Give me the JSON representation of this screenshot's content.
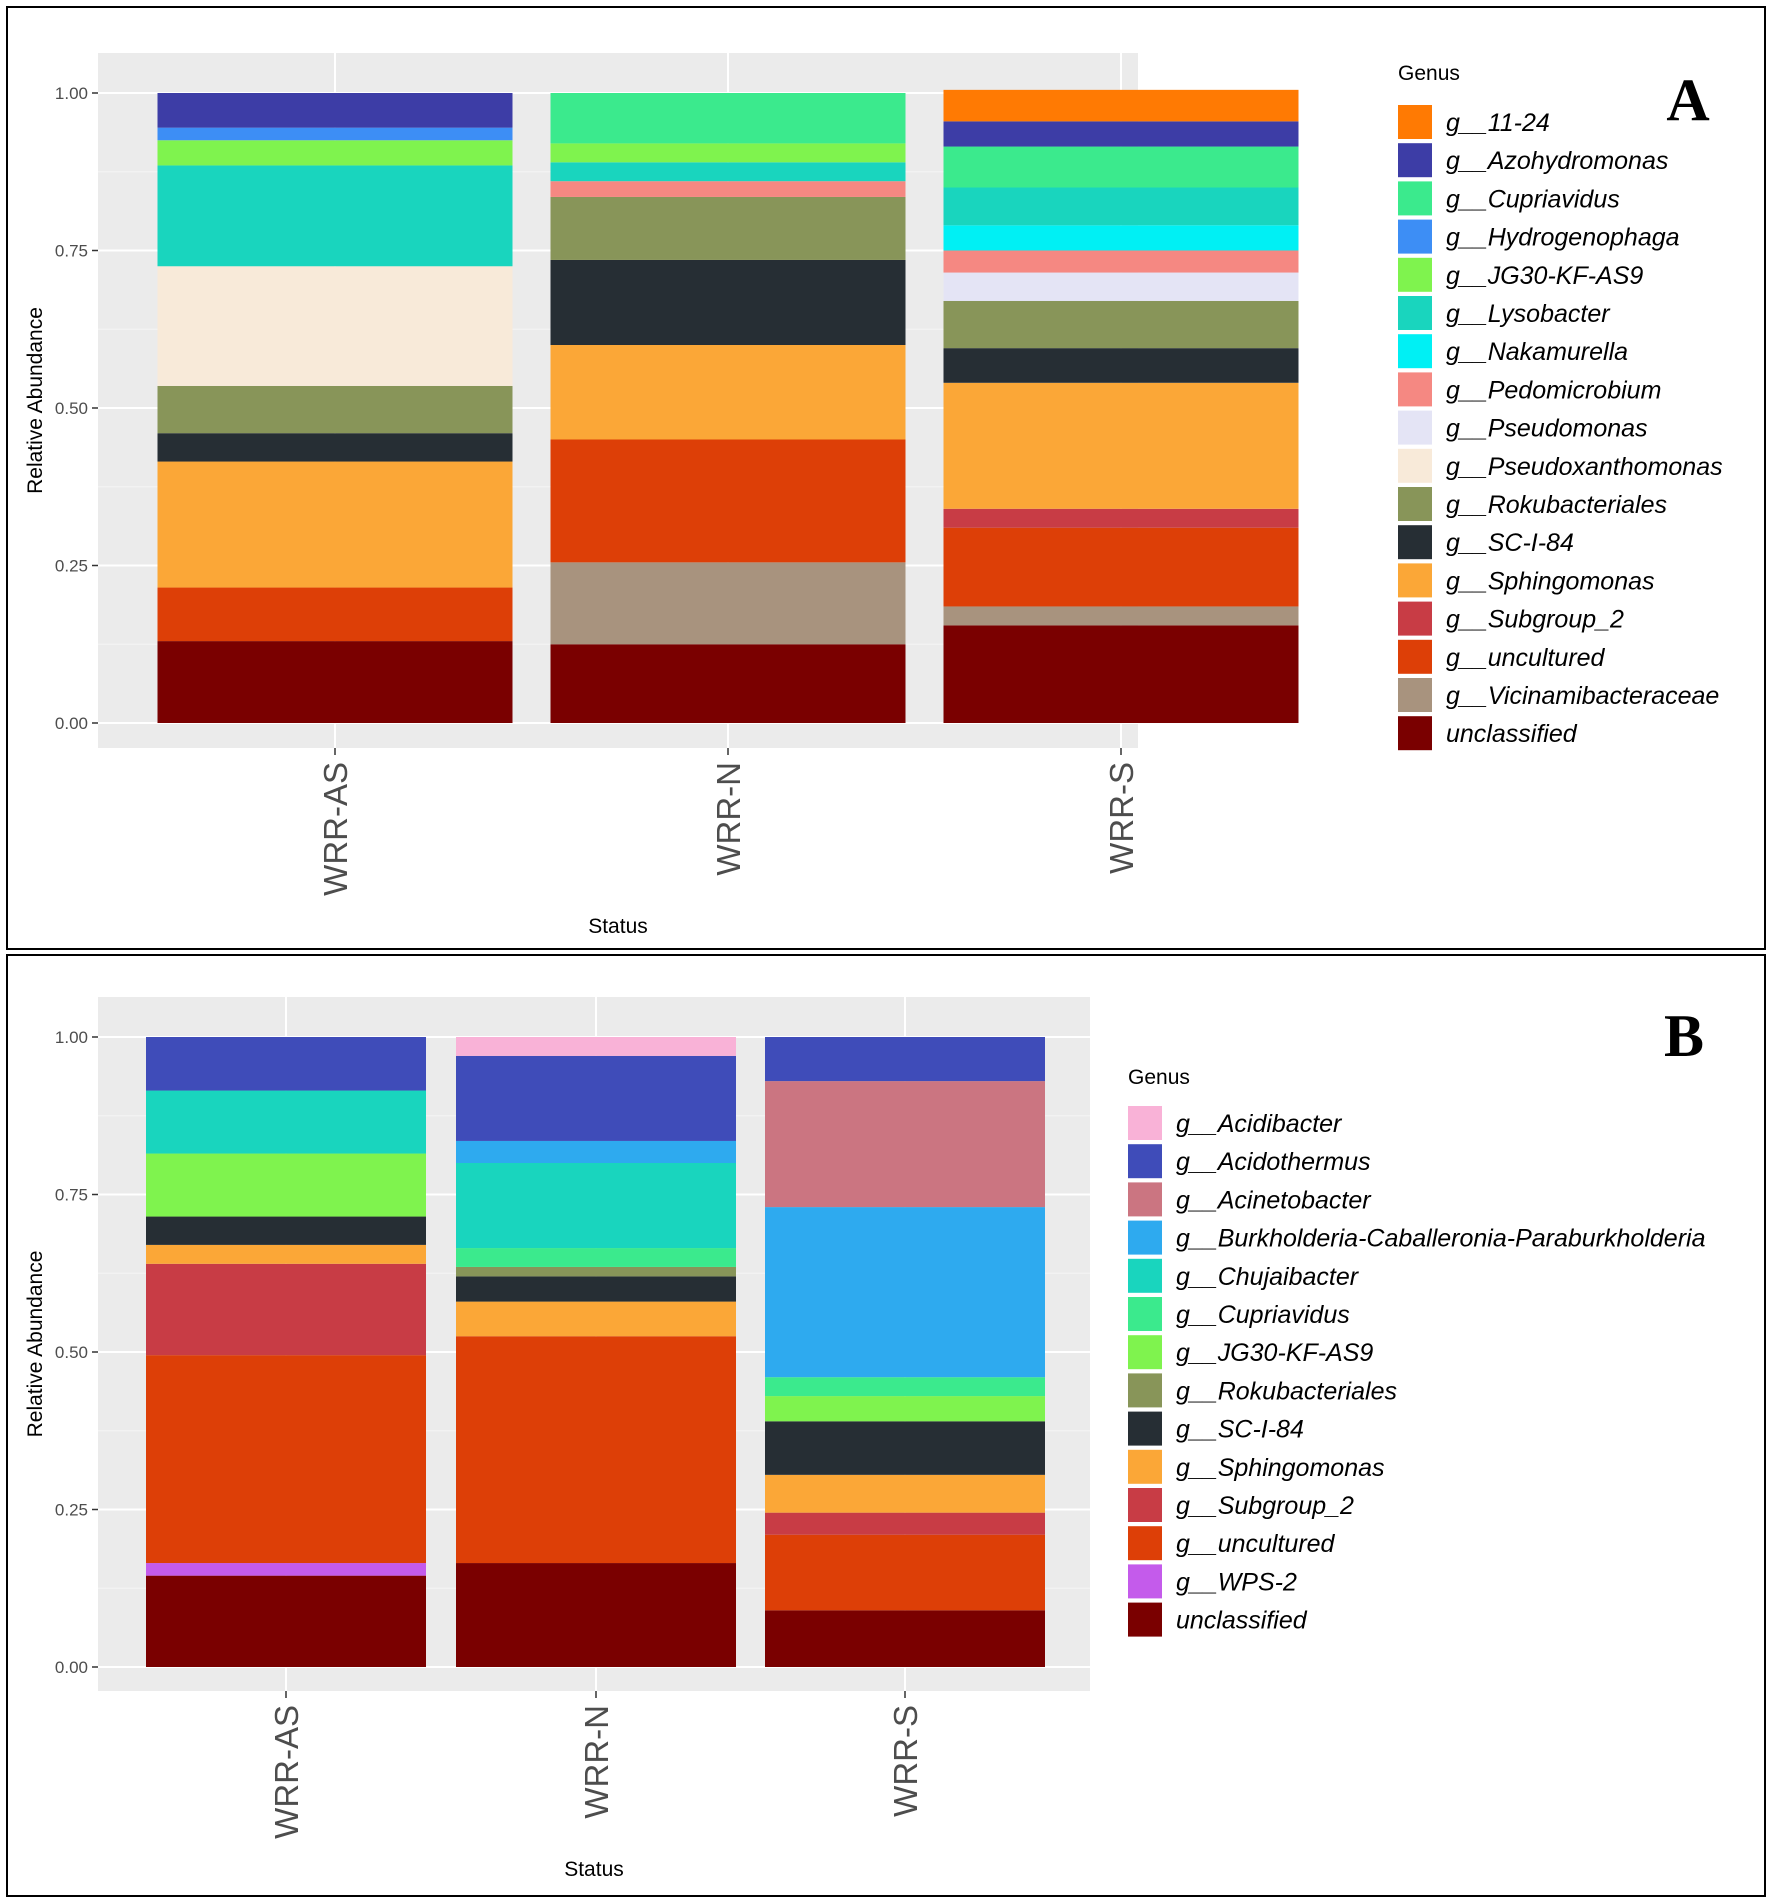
{
  "chart_data": [
    {
      "type": "bar",
      "stacked": true,
      "panel_label": "A",
      "xlabel": "Status",
      "ylabel": "Relative Abundance",
      "ylim": [
        0,
        1
      ],
      "yticks": [
        "0.00",
        "0.25",
        "0.50",
        "0.75",
        "1.00"
      ],
      "categories": [
        "WRR-AS",
        "WRR-N",
        "WRR-S"
      ],
      "legend_title": "Genus",
      "legend_position": "right",
      "series": [
        {
          "name": "unclassified",
          "color": "#7A0000",
          "values": [
            0.13,
            0.125,
            0.155
          ]
        },
        {
          "name": "g__Vicinamibacteraceae",
          "color": "#A8937E",
          "values": [
            0,
            0.13,
            0.03
          ]
        },
        {
          "name": "g__uncultured",
          "color": "#DD3F07",
          "values": [
            0.085,
            0.195,
            0.125
          ]
        },
        {
          "name": "g__Subgroup_2",
          "color": "#C83C45",
          "values": [
            0,
            0,
            0.03
          ]
        },
        {
          "name": "g__Sphingomonas",
          "color": "#FBA737",
          "values": [
            0.2,
            0.15,
            0.2
          ]
        },
        {
          "name": "g__SC-I-84",
          "color": "#262E34",
          "values": [
            0.045,
            0.135,
            0.055
          ]
        },
        {
          "name": "g__Rokubacteriales",
          "color": "#889559",
          "values": [
            0.075,
            0.1,
            0.075
          ]
        },
        {
          "name": "g__Pseudoxanthomonas",
          "color": "#F8EAD9",
          "values": [
            0.19,
            0,
            0
          ]
        },
        {
          "name": "g__Pseudomonas",
          "color": "#E4E4F5",
          "values": [
            0,
            0,
            0.045
          ]
        },
        {
          "name": "g__Pedomicrobium",
          "color": "#F58882",
          "values": [
            0,
            0.025,
            0.035
          ]
        },
        {
          "name": "g__Nakamurella",
          "color": "#00F0F4",
          "values": [
            0,
            0,
            0.04
          ]
        },
        {
          "name": "g__Lysobacter",
          "color": "#19D5BE",
          "values": [
            0.16,
            0.03,
            0.06
          ]
        },
        {
          "name": "g__JG30-KF-AS9",
          "color": "#7FF34E",
          "values": [
            0.04,
            0.03,
            0
          ]
        },
        {
          "name": "g__Hydrogenophaga",
          "color": "#3D8EF5",
          "values": [
            0.02,
            0,
            0
          ]
        },
        {
          "name": "g__Cupriavidus",
          "color": "#3BEA8D",
          "values": [
            0,
            0.08,
            0.065
          ]
        },
        {
          "name": "g__Azohydromonas",
          "color": "#3D3DA6",
          "values": [
            0.055,
            0,
            0.04
          ]
        },
        {
          "name": "g__11-24",
          "color": "#FF7A03",
          "values": [
            0,
            0,
            0.05
          ]
        }
      ],
      "legend_order": [
        "g__11-24",
        "g__Azohydromonas",
        "g__Cupriavidus",
        "g__Hydrogenophaga",
        "g__JG30-KF-AS9",
        "g__Lysobacter",
        "g__Nakamurella",
        "g__Pedomicrobium",
        "g__Pseudomonas",
        "g__Pseudoxanthomonas",
        "g__Rokubacteriales",
        "g__SC-I-84",
        "g__Sphingomonas",
        "g__Subgroup_2",
        "g__uncultured",
        "g__Vicinamibacteraceae",
        "unclassified"
      ]
    },
    {
      "type": "bar",
      "stacked": true,
      "panel_label": "B",
      "xlabel": "Status",
      "ylabel": "Relative Abundance",
      "ylim": [
        0,
        1
      ],
      "yticks": [
        "0.00",
        "0.25",
        "0.50",
        "0.75",
        "1.00"
      ],
      "categories": [
        "WRR-AS",
        "WRR-N",
        "WRR-S"
      ],
      "legend_title": "Genus",
      "legend_position": "right",
      "series": [
        {
          "name": "unclassified",
          "color": "#7A0000",
          "values": [
            0.145,
            0.165,
            0.09
          ]
        },
        {
          "name": "g__WPS-2",
          "color": "#C45BEB",
          "values": [
            0.02,
            0,
            0
          ]
        },
        {
          "name": "g__uncultured",
          "color": "#DD3F07",
          "values": [
            0.33,
            0.36,
            0.12
          ]
        },
        {
          "name": "g__Subgroup_2",
          "color": "#C83C45",
          "values": [
            0.145,
            0,
            0.035
          ]
        },
        {
          "name": "g__Sphingomonas",
          "color": "#FBA737",
          "values": [
            0.03,
            0.055,
            0.06
          ]
        },
        {
          "name": "g__SC-I-84",
          "color": "#262E34",
          "values": [
            0.045,
            0.04,
            0.085
          ]
        },
        {
          "name": "g__Rokubacteriales",
          "color": "#889559",
          "values": [
            0,
            0.015,
            0
          ]
        },
        {
          "name": "g__JG30-KF-AS9",
          "color": "#7FF34E",
          "values": [
            0.1,
            0,
            0.04
          ]
        },
        {
          "name": "g__Cupriavidus",
          "color": "#3BEA8D",
          "values": [
            0,
            0.03,
            0.03
          ]
        },
        {
          "name": "g__Chujaibacter",
          "color": "#19D5BE",
          "values": [
            0.1,
            0.135,
            0
          ]
        },
        {
          "name": "g__Burkholderia-Caballeronia-Paraburkholderia",
          "color": "#2EAAEF",
          "values": [
            0,
            0.035,
            0.27
          ]
        },
        {
          "name": "g__Acinetobacter",
          "color": "#CB7581",
          "values": [
            0,
            0,
            0.2
          ]
        },
        {
          "name": "g__Acidothermus",
          "color": "#3F4CB9",
          "values": [
            0.085,
            0.135,
            0.07
          ]
        },
        {
          "name": "g__Acidibacter",
          "color": "#F9B2D7",
          "values": [
            0,
            0.03,
            0
          ]
        }
      ],
      "legend_order": [
        "g__Acidibacter",
        "g__Acidothermus",
        "g__Acinetobacter",
        "g__Burkholderia-Caballeronia-Paraburkholderia",
        "g__Chujaibacter",
        "g__Cupriavidus",
        "g__JG30-KF-AS9",
        "g__Rokubacteriales",
        "g__SC-I-84",
        "g__Sphingomonas",
        "g__Subgroup_2",
        "g__uncultured",
        "g__WPS-2",
        "unclassified"
      ]
    }
  ]
}
